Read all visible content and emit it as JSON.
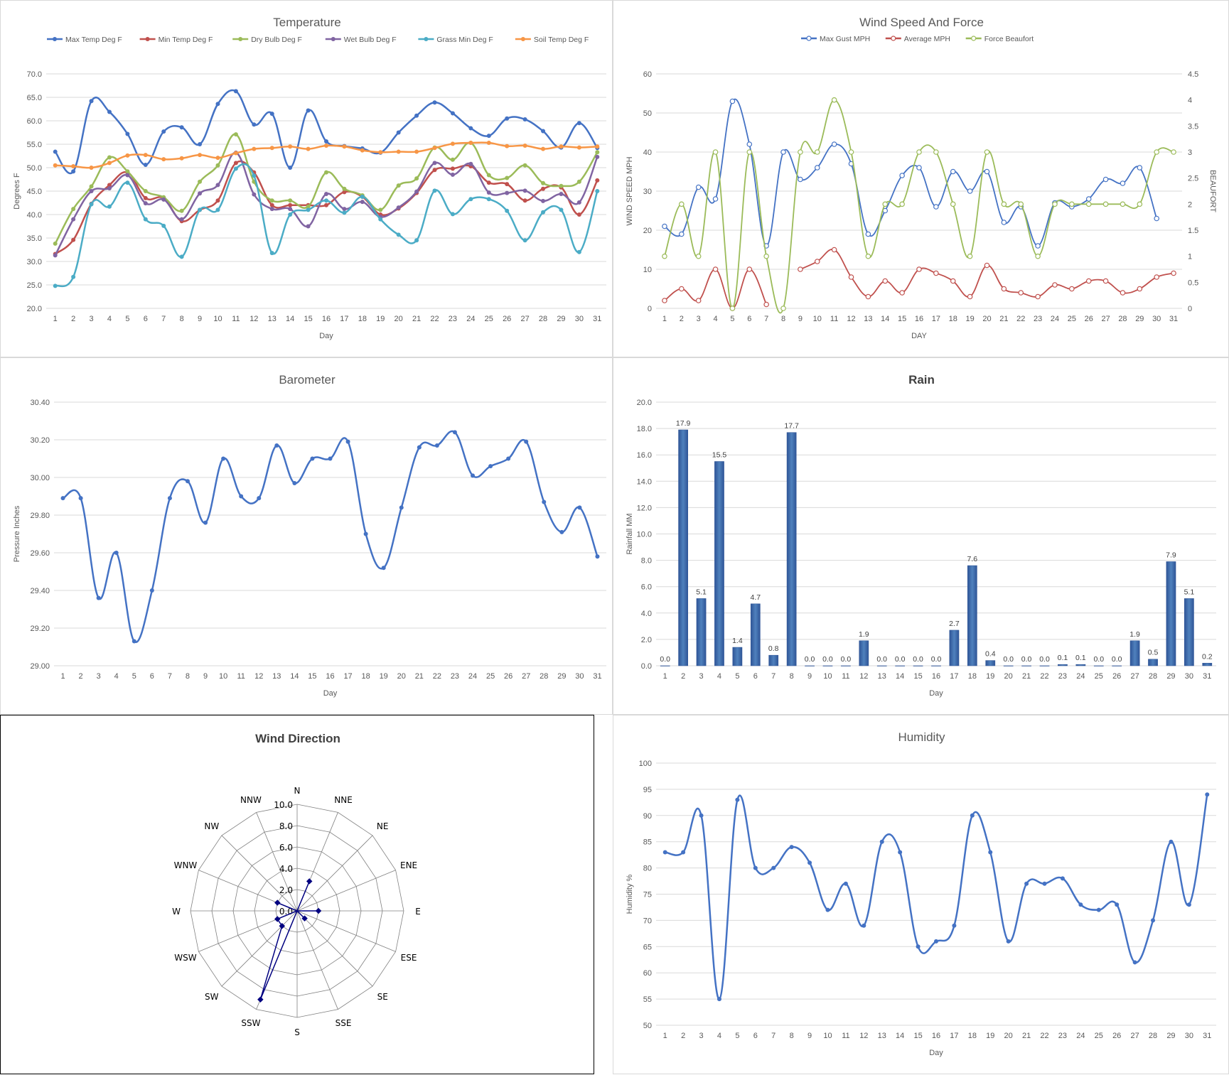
{
  "chart_data": [
    {
      "id": "temp",
      "type": "line",
      "title": "Temperature",
      "xlabel": "Day",
      "ylabel": "Degrees F",
      "ylim": [
        20,
        70
      ],
      "ystep": 5,
      "ydecimals": 1,
      "grid": true,
      "legend": "top",
      "x": [
        1,
        2,
        3,
        4,
        5,
        6,
        7,
        8,
        9,
        10,
        11,
        12,
        13,
        14,
        15,
        16,
        17,
        18,
        19,
        20,
        21,
        22,
        23,
        24,
        25,
        26,
        27,
        28,
        29,
        30,
        31
      ],
      "series": [
        {
          "name": "Max Temp Deg F",
          "color": "#4472c4",
          "values": [
            53.4,
            49.2,
            64.2,
            61.9,
            57.2,
            50.6,
            57.7,
            58.6,
            55.0,
            63.6,
            66.3,
            59.2,
            61.5,
            50.0,
            62.2,
            55.6,
            54.6,
            54.1,
            53.2,
            57.5,
            61.1,
            63.9,
            61.6,
            58.4,
            56.8,
            60.5,
            60.3,
            57.8,
            54.3,
            59.5,
            54.2
          ]
        },
        {
          "name": "Min Temp Deg F",
          "color": "#c0504d",
          "values": [
            31.6,
            34.6,
            42.3,
            46.3,
            49.0,
            43.5,
            43.5,
            38.6,
            41.0,
            43.0,
            51.0,
            49.0,
            42.0,
            42.0,
            42.0,
            42.0,
            44.8,
            43.8,
            40.0,
            41.3,
            44.6,
            49.5,
            49.8,
            50.3,
            46.8,
            46.5,
            43.0,
            45.5,
            45.8,
            40.0,
            47.3
          ]
        },
        {
          "name": "Dry Bulb Deg F",
          "color": "#9bbb59",
          "values": [
            33.8,
            41.2,
            46.0,
            52.2,
            49.2,
            45.0,
            43.7,
            40.8,
            47.0,
            50.5,
            57.1,
            47.0,
            43.0,
            43.0,
            41.7,
            49.0,
            45.5,
            44.1,
            41.0,
            46.2,
            47.7,
            54.3,
            51.7,
            55.3,
            48.4,
            47.8,
            50.5,
            46.7,
            46.1,
            47.0,
            53.3
          ]
        },
        {
          "name": "Wet Bulb Deg F",
          "color": "#8064a2",
          "values": [
            31.3,
            39.0,
            45.0,
            45.6,
            48.4,
            42.4,
            43.2,
            39.0,
            44.5,
            46.3,
            53.2,
            44.3,
            41.2,
            41.2,
            37.5,
            44.4,
            41.2,
            42.7,
            39.5,
            41.5,
            44.9,
            51.0,
            48.5,
            50.8,
            44.7,
            44.6,
            45.1,
            42.9,
            44.4,
            42.6,
            52.3
          ]
        },
        {
          "name": "Grass Min Deg F",
          "color": "#4bacc6",
          "values": [
            24.8,
            26.7,
            42.2,
            41.7,
            46.8,
            39.0,
            37.6,
            31.0,
            41.0,
            41.0,
            49.8,
            48.3,
            31.8,
            40.0,
            41.0,
            43.0,
            40.4,
            43.8,
            39.0,
            35.7,
            34.5,
            45.1,
            40.1,
            43.3,
            43.3,
            40.8,
            34.5,
            40.5,
            41.0,
            32.0,
            45.0
          ]
        },
        {
          "name": "Soil Temp Deg F",
          "color": "#f79646",
          "values": [
            50.5,
            50.3,
            50.0,
            51.0,
            52.6,
            52.7,
            51.8,
            52.0,
            52.7,
            52.1,
            53.1,
            54.0,
            54.2,
            54.5,
            54.0,
            54.7,
            54.5,
            53.7,
            53.3,
            53.4,
            53.4,
            54.2,
            55.1,
            55.3,
            55.3,
            54.6,
            54.7,
            54.0,
            54.5,
            54.3,
            54.5
          ]
        }
      ]
    },
    {
      "id": "wind",
      "type": "line",
      "title": "Wind Speed And Force",
      "xlabel": "DAY",
      "ylabel": "WIND SPEED MPH",
      "y2label": "BEAUFORT",
      "ylim": [
        0,
        60
      ],
      "ystep": 10,
      "y2lim": [
        0,
        4.5
      ],
      "y2step": 0.5,
      "grid": true,
      "legend": "top",
      "x": [
        1,
        2,
        3,
        4,
        5,
        6,
        7,
        8,
        9,
        10,
        11,
        12,
        13,
        14,
        15,
        16,
        17,
        18,
        19,
        20,
        21,
        22,
        23,
        24,
        25,
        26,
        27,
        28,
        29,
        30,
        31
      ],
      "series": [
        {
          "name": "Max Gust MPH",
          "color": "#4472c4",
          "axis": "left",
          "values": [
            21,
            19,
            31,
            28,
            53,
            42,
            16,
            40,
            33,
            36,
            42,
            37,
            19,
            25,
            34,
            36,
            26,
            35,
            30,
            35,
            22,
            26,
            16,
            27,
            26,
            28,
            33,
            32,
            36,
            23,
            null
          ]
        },
        {
          "name": "Average MPH",
          "color": "#c0504d",
          "axis": "left",
          "values": [
            2,
            5,
            2,
            10,
            0,
            10,
            1,
            null,
            10,
            12,
            15,
            8,
            3,
            7,
            4,
            10,
            9,
            7,
            3,
            11,
            5,
            4,
            3,
            6,
            5,
            7,
            7,
            4,
            5,
            8,
            9
          ]
        },
        {
          "name": "Force Beaufort",
          "color": "#9bbb59",
          "axis": "right",
          "values": [
            1,
            2,
            1,
            3,
            0,
            3,
            1,
            0,
            3,
            3,
            4,
            3,
            1,
            2,
            2,
            3,
            3,
            2,
            1,
            3,
            2,
            2,
            1,
            2,
            2,
            2,
            2,
            2,
            2,
            3,
            3
          ]
        }
      ]
    },
    {
      "id": "baro",
      "type": "line",
      "title": "Barometer",
      "xlabel": "Day",
      "ylabel": "Pressure Inches",
      "ylim": [
        29.0,
        30.4
      ],
      "ystep": 0.2,
      "ydecimals": 2,
      "grid": true,
      "x": [
        1,
        2,
        3,
        4,
        5,
        6,
        7,
        8,
        9,
        10,
        11,
        12,
        13,
        14,
        15,
        16,
        17,
        18,
        19,
        20,
        21,
        22,
        23,
        24,
        25,
        26,
        27,
        28,
        29,
        30,
        31
      ],
      "series": [
        {
          "name": "",
          "color": "#4472c4",
          "values": [
            29.89,
            29.89,
            29.36,
            29.6,
            29.13,
            29.4,
            29.89,
            29.98,
            29.76,
            30.1,
            29.9,
            29.89,
            30.17,
            29.97,
            30.1,
            30.1,
            30.19,
            29.7,
            29.52,
            29.84,
            30.16,
            30.17,
            30.24,
            30.01,
            30.06,
            30.1,
            30.19,
            29.87,
            29.71,
            29.84,
            29.58
          ]
        }
      ]
    },
    {
      "id": "rain",
      "type": "bar",
      "title": "Rain",
      "xlabel": "Day",
      "ylabel": "Rainfall MM",
      "ylim": [
        0,
        20
      ],
      "ystep": 2,
      "ydecimals": 1,
      "grid": true,
      "categories": [
        "1",
        "2",
        "3",
        "4",
        "5",
        "6",
        "7",
        "8",
        "9",
        "10",
        "11",
        "12",
        "13",
        "14",
        "15",
        "16",
        "17",
        "18",
        "19",
        "20",
        "21",
        "22",
        "23",
        "24",
        "25",
        "26",
        "27",
        "28",
        "29",
        "30",
        "31"
      ],
      "values": [
        0.0,
        17.9,
        5.1,
        15.5,
        1.4,
        4.7,
        0.8,
        17.7,
        0.0,
        0.0,
        0.0,
        1.9,
        0.0,
        0.0,
        0.0,
        0.0,
        2.7,
        7.6,
        0.4,
        0.0,
        0.0,
        0.0,
        0.1,
        0.1,
        0.0,
        0.0,
        1.9,
        0.5,
        7.9,
        5.1,
        0.2
      ],
      "labels": [
        "0.0",
        "17.9",
        "5.1",
        "15.5",
        "1.4",
        "4.7",
        "0.8",
        "17.7",
        "0.0",
        "0.0",
        "0.0",
        "1.9",
        "0.0",
        "0.0",
        "0.0",
        "0.0",
        "2.7",
        "7.6",
        "0.4",
        "0.0",
        "0.0",
        "0.0",
        "0.1",
        "0.1",
        "0.0",
        "0.0",
        "1.9",
        "0.5",
        "7.9",
        "5.1",
        "0.2"
      ],
      "color": "#4f81bd"
    },
    {
      "id": "dir",
      "type": "radar",
      "title": "Wind Direction",
      "rlim": [
        0,
        10
      ],
      "rstep": 2,
      "ticklabels": [
        "0.0",
        "2.0",
        "4.0",
        "6.0",
        "8.0",
        "10.0"
      ],
      "directions": [
        "N",
        "NNE",
        "NE",
        "ENE",
        "E",
        "ESE",
        "SE",
        "SSE",
        "S",
        "SSW",
        "SW",
        "WSW",
        "W",
        "WNW",
        "NW",
        "NNW"
      ],
      "values": [
        0,
        3,
        0,
        0,
        2,
        0,
        1,
        0,
        0,
        9,
        2,
        2,
        0,
        2,
        0,
        0
      ],
      "color": "#000080"
    },
    {
      "id": "hum",
      "type": "line",
      "title": "Humidity",
      "xlabel": "Day",
      "ylabel": "Humidity %",
      "ylim": [
        50,
        100
      ],
      "ystep": 5,
      "ydecimals": 0,
      "grid": true,
      "x": [
        1,
        2,
        3,
        4,
        5,
        6,
        7,
        8,
        9,
        10,
        11,
        12,
        13,
        14,
        15,
        16,
        17,
        18,
        19,
        20,
        21,
        22,
        23,
        24,
        25,
        26,
        27,
        28,
        29,
        30,
        31
      ],
      "series": [
        {
          "name": "",
          "color": "#4472c4",
          "values": [
            83,
            83,
            90,
            55,
            93,
            80,
            80,
            84,
            81,
            72,
            77,
            69,
            85,
            83,
            65,
            66,
            69,
            90,
            83,
            66,
            77,
            77,
            78,
            73,
            72,
            73,
            62,
            70,
            85,
            73,
            94
          ]
        }
      ]
    }
  ]
}
